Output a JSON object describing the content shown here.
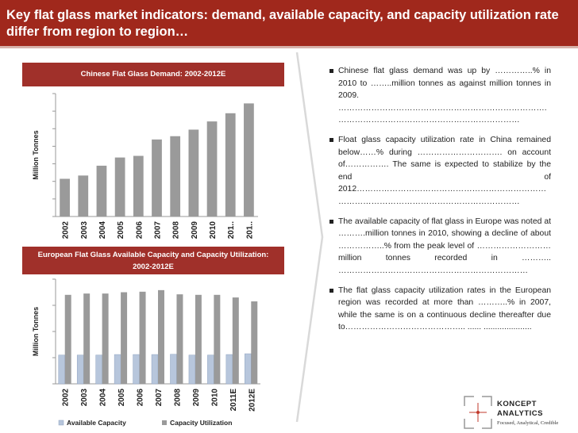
{
  "title": "Key flat glass market indicators: demand, available capacity, and capacity utilization rate differ from region to region…",
  "chart1": {
    "banner": "Chinese Flat Glass Demand: 2002-2012E"
  },
  "chart2": {
    "banner_line1": "European Flat Glass Available Capacity and Capacity Utilization:",
    "banner_line2": "2002-2012E"
  },
  "bullets": [
    "Chinese flat glass demand  was up by …………..% in 2010 to ……..million tonnes as against million tonnes in 2009. …………………………………………………………………. …………………………………………………………",
    "Float glass capacity utilization rate in China remained below……% during …………………………. on account of……………. The same is expected to stabilize by the end of 2012…………………………………………………………… …………………………………………………………",
    "The available capacity  of flat glass in Europe was noted at ……….million tonnes in 2010, showing a decline of about ……………..% from the peak level of ………………………million tonnes recorded in ……….. ……………………………………………………………",
    "The flat glass capacity utilization rates in the European region  was recorded at more than ………..% in 2007, while the same is on a continuous decline thereafter due to…………………………………….. ...... ....................."
  ],
  "logo": {
    "line1": "KONCEPT",
    "line2": "ANALYTICS",
    "tagline": "Focused, Analytical, Credible"
  },
  "colors": {
    "title_bg": "#a0281c",
    "banner_bg": "#a0302a",
    "bar_gray": "#9a9a9a",
    "bar_blue": "#b7c6dc"
  },
  "chart_data": [
    {
      "type": "bar",
      "title": "Chinese Flat Glass Demand: 2002-2012E",
      "ylabel": "Million Tonnes",
      "xlabel": "",
      "categories": [
        "2002",
        "2003",
        "2004",
        "2005",
        "2006",
        "2007",
        "2008",
        "2009",
        "2010",
        "201..",
        "201.."
      ],
      "values": [
        23,
        25,
        31,
        36,
        37,
        47,
        49,
        53,
        58,
        63,
        69
      ],
      "ylim": [
        0,
        75
      ],
      "grid": false
    },
    {
      "type": "bar",
      "title": "European Flat Glass Available Capacity and Capacity Utilization: 2002-2012E",
      "ylabel": "Million Tonnes",
      "xlabel": "",
      "categories": [
        "2002",
        "2003",
        "2004",
        "2005",
        "2006",
        "2007",
        "2008",
        "2009",
        "2010",
        "2011E",
        "2012E"
      ],
      "series": [
        {
          "name": "Available Capacity",
          "values": [
            11,
            11,
            11,
            11.2,
            11.2,
            11.2,
            11.3,
            11,
            11,
            11.2,
            11.5
          ]
        },
        {
          "name": "Capacity Utilization",
          "values": [
            34,
            34.5,
            34.5,
            35,
            35.2,
            35.8,
            34.2,
            34,
            34,
            33,
            31.5
          ]
        }
      ],
      "ylim": [
        0,
        40
      ],
      "legend": "bottom",
      "grid": false
    }
  ]
}
